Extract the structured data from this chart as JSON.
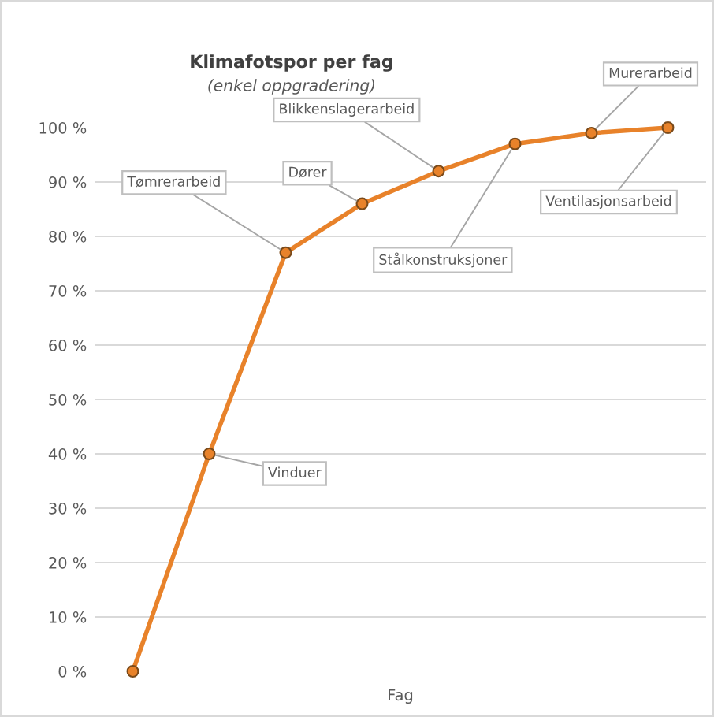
{
  "chart_data": {
    "type": "line",
    "title": "Klimafotspor per fag",
    "subtitle": "(enkel oppgradering)",
    "xlabel": "Fag",
    "categories": [
      null,
      null,
      null,
      null,
      null,
      null,
      null,
      null
    ],
    "series": [
      {
        "color": "#e8822a",
        "values": [
          0,
          40,
          77,
          86,
          92,
          97,
          99,
          100
        ],
        "value_labels": [
          null,
          "Vinduer",
          "Tømrerarbeid",
          "Dører",
          "Blikkenslagerarbeid",
          "Stålkonstruksjoner",
          "Murerarbeid",
          "Ventilasjonsarbeid"
        ]
      }
    ],
    "ylim": [
      0,
      100
    ],
    "yticks": [
      {
        "value": 0,
        "label": "0 %"
      },
      {
        "value": 10,
        "label": "10 %"
      },
      {
        "value": 20,
        "label": "20 %"
      },
      {
        "value": 30,
        "label": "30 %"
      },
      {
        "value": 40,
        "label": "40 %"
      },
      {
        "value": 50,
        "label": "50 %"
      },
      {
        "value": 60,
        "label": "60 %"
      },
      {
        "value": 70,
        "label": "70 %"
      },
      {
        "value": 80,
        "label": "80 %"
      },
      {
        "value": 90,
        "label": "90 %"
      },
      {
        "value": 100,
        "label": "100 %"
      }
    ],
    "grid": "y",
    "marker": "circle",
    "tick_labels": "y"
  }
}
